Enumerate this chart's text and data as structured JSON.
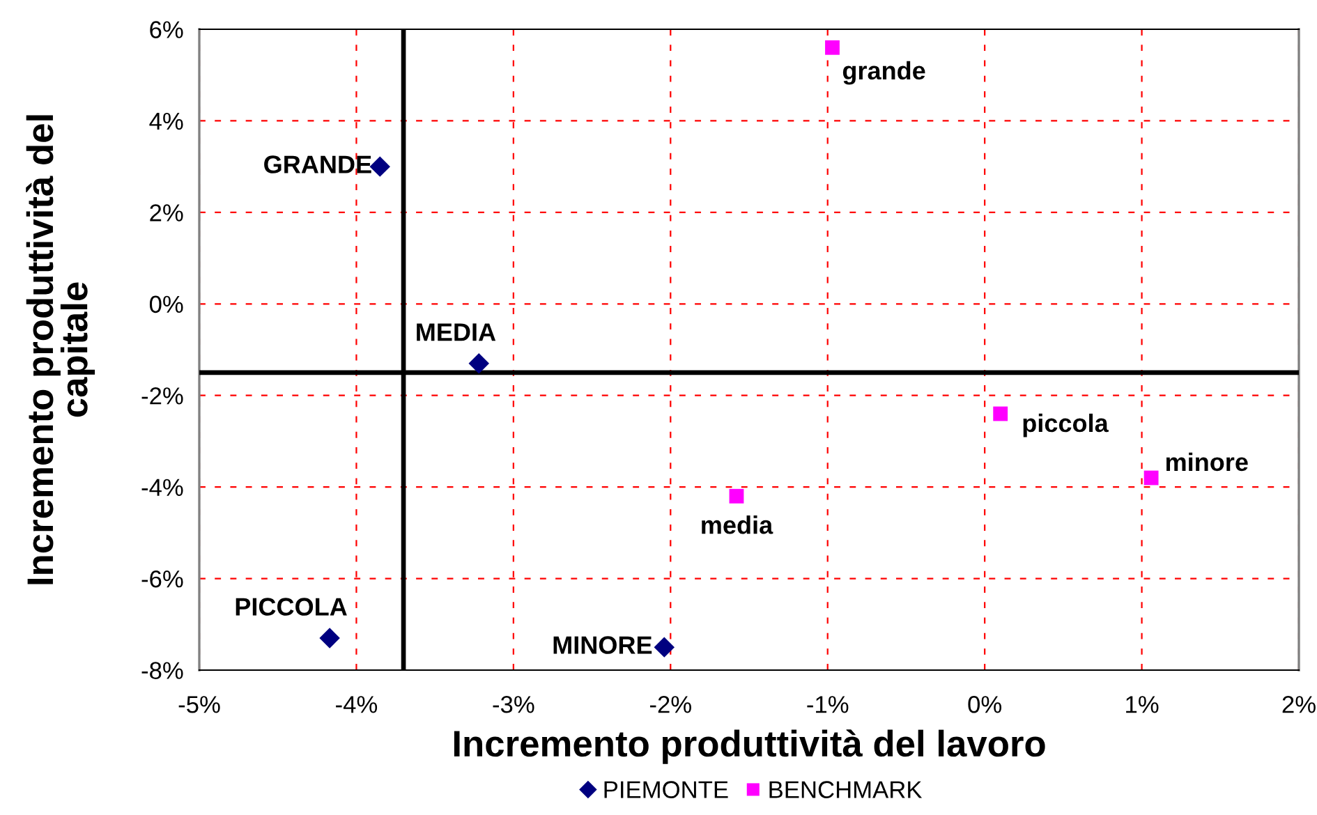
{
  "chart_data": {
    "type": "scatter",
    "xlabel": "Incremento produttività del lavoro",
    "ylabel": "Incremento produttività del\ncapitale",
    "xlim": [
      -5,
      2
    ],
    "ylim": [
      -8,
      6
    ],
    "xticks": [
      {
        "value": -5,
        "label": "-5%"
      },
      {
        "value": -4,
        "label": "-4%"
      },
      {
        "value": -3,
        "label": "-3%"
      },
      {
        "value": -2,
        "label": "-2%"
      },
      {
        "value": -1,
        "label": "-1%"
      },
      {
        "value": 0,
        "label": "0%"
      },
      {
        "value": 1,
        "label": "1%"
      },
      {
        "value": 2,
        "label": "2%"
      }
    ],
    "yticks": [
      {
        "value": -8,
        "label": "-8%"
      },
      {
        "value": -6,
        "label": "-6%"
      },
      {
        "value": -4,
        "label": "-4%"
      },
      {
        "value": -2,
        "label": "-2%"
      },
      {
        "value": 0,
        "label": "0%"
      },
      {
        "value": 2,
        "label": "2%"
      },
      {
        "value": 4,
        "label": "4%"
      },
      {
        "value": 6,
        "label": "6%"
      }
    ],
    "grid": true,
    "legend": "bottom",
    "series": [
      {
        "name": "PIEMONTE",
        "color": "#000080",
        "marker": "diamond",
        "x": [
          -3.85,
          -3.22,
          -4.17,
          -2.04
        ],
        "values": [
          3.0,
          -1.3,
          -7.3,
          -7.5
        ]
      },
      {
        "name": "BENCHMARK",
        "color": "#ff00ff",
        "marker": "square",
        "x": [
          -0.97,
          -1.58,
          0.1,
          1.06
        ],
        "values": [
          5.6,
          -4.2,
          -2.4,
          -3.8
        ]
      }
    ],
    "ref_lines": [
      {
        "axis": "x",
        "value": -3.7,
        "color": "#000000"
      },
      {
        "axis": "y",
        "value": -1.5,
        "color": "#000000"
      }
    ],
    "annotations": [
      {
        "text": "GRANDE",
        "x": -3.85,
        "y": 3.0
      },
      {
        "text": "MEDIA",
        "x": -3.22,
        "y": -1.3
      },
      {
        "text": "PICCOLA",
        "x": -4.17,
        "y": -7.3
      },
      {
        "text": "MINORE",
        "x": -2.04,
        "y": -7.5
      },
      {
        "text": "grande",
        "x": -0.97,
        "y": 5.6
      },
      {
        "text": "media",
        "x": -1.58,
        "y": -4.2
      },
      {
        "text": "piccola",
        "x": 0.1,
        "y": -2.4
      },
      {
        "text": "minore",
        "x": 1.06,
        "y": -3.8
      }
    ]
  }
}
